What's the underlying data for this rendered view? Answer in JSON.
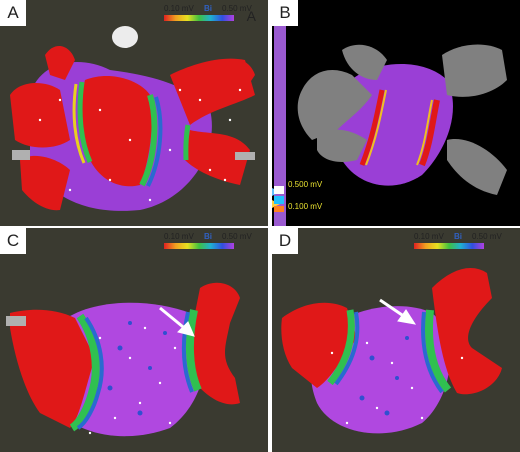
{
  "panels": {
    "a": {
      "label": "A",
      "scale_min": "0.10 mV",
      "scale_tag": "Bi",
      "scale_max": "0.50 mV",
      "corner_label": "A"
    },
    "b": {
      "label": "B",
      "value_high": "0.500 mV",
      "value_low": "0.100 mV"
    },
    "c": {
      "label": "C",
      "scale_min": "0.10 mV",
      "scale_tag": "Bi",
      "scale_max": "0.50 mV"
    },
    "d": {
      "label": "D",
      "scale_min": "0.10 mV",
      "scale_tag": "Bi",
      "scale_max": "0.50 mV"
    }
  },
  "colors": {
    "background": "#3a3a30",
    "scar": "#e01818",
    "healthy": "#a040d8",
    "border_green": "#30c050",
    "border_blue": "#2a6ad0",
    "panel_b_background": "#000000",
    "panel_b_shell": "#808080"
  }
}
